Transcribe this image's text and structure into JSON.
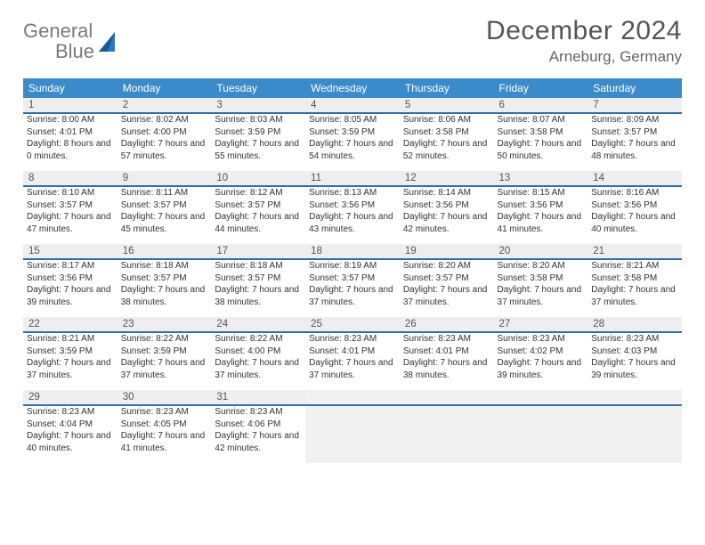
{
  "logo": {
    "text1": "General",
    "text2": "Blue"
  },
  "title": "December 2024",
  "location": "Arneburg, Germany",
  "dows": [
    "Sunday",
    "Monday",
    "Tuesday",
    "Wednesday",
    "Thursday",
    "Friday",
    "Saturday"
  ],
  "colors": {
    "header_bg": "#3b8bca",
    "row_rule": "#2f6fa8",
    "daynum_bg": "#eeeeee",
    "logo_gray": "#7a7a7a",
    "logo_blue": "#2f78c0"
  },
  "weeks": [
    [
      {
        "n": "1",
        "sr": "8:00 AM",
        "ss": "4:01 PM",
        "dh": "8",
        "dm": "0"
      },
      {
        "n": "2",
        "sr": "8:02 AM",
        "ss": "4:00 PM",
        "dh": "7",
        "dm": "57"
      },
      {
        "n": "3",
        "sr": "8:03 AM",
        "ss": "3:59 PM",
        "dh": "7",
        "dm": "55"
      },
      {
        "n": "4",
        "sr": "8:05 AM",
        "ss": "3:59 PM",
        "dh": "7",
        "dm": "54"
      },
      {
        "n": "5",
        "sr": "8:06 AM",
        "ss": "3:58 PM",
        "dh": "7",
        "dm": "52"
      },
      {
        "n": "6",
        "sr": "8:07 AM",
        "ss": "3:58 PM",
        "dh": "7",
        "dm": "50"
      },
      {
        "n": "7",
        "sr": "8:09 AM",
        "ss": "3:57 PM",
        "dh": "7",
        "dm": "48"
      }
    ],
    [
      {
        "n": "8",
        "sr": "8:10 AM",
        "ss": "3:57 PM",
        "dh": "7",
        "dm": "47"
      },
      {
        "n": "9",
        "sr": "8:11 AM",
        "ss": "3:57 PM",
        "dh": "7",
        "dm": "45"
      },
      {
        "n": "10",
        "sr": "8:12 AM",
        "ss": "3:57 PM",
        "dh": "7",
        "dm": "44"
      },
      {
        "n": "11",
        "sr": "8:13 AM",
        "ss": "3:56 PM",
        "dh": "7",
        "dm": "43"
      },
      {
        "n": "12",
        "sr": "8:14 AM",
        "ss": "3:56 PM",
        "dh": "7",
        "dm": "42"
      },
      {
        "n": "13",
        "sr": "8:15 AM",
        "ss": "3:56 PM",
        "dh": "7",
        "dm": "41"
      },
      {
        "n": "14",
        "sr": "8:16 AM",
        "ss": "3:56 PM",
        "dh": "7",
        "dm": "40"
      }
    ],
    [
      {
        "n": "15",
        "sr": "8:17 AM",
        "ss": "3:56 PM",
        "dh": "7",
        "dm": "39"
      },
      {
        "n": "16",
        "sr": "8:18 AM",
        "ss": "3:57 PM",
        "dh": "7",
        "dm": "38"
      },
      {
        "n": "17",
        "sr": "8:18 AM",
        "ss": "3:57 PM",
        "dh": "7",
        "dm": "38"
      },
      {
        "n": "18",
        "sr": "8:19 AM",
        "ss": "3:57 PM",
        "dh": "7",
        "dm": "37"
      },
      {
        "n": "19",
        "sr": "8:20 AM",
        "ss": "3:57 PM",
        "dh": "7",
        "dm": "37"
      },
      {
        "n": "20",
        "sr": "8:20 AM",
        "ss": "3:58 PM",
        "dh": "7",
        "dm": "37"
      },
      {
        "n": "21",
        "sr": "8:21 AM",
        "ss": "3:58 PM",
        "dh": "7",
        "dm": "37"
      }
    ],
    [
      {
        "n": "22",
        "sr": "8:21 AM",
        "ss": "3:59 PM",
        "dh": "7",
        "dm": "37"
      },
      {
        "n": "23",
        "sr": "8:22 AM",
        "ss": "3:59 PM",
        "dh": "7",
        "dm": "37"
      },
      {
        "n": "24",
        "sr": "8:22 AM",
        "ss": "4:00 PM",
        "dh": "7",
        "dm": "37"
      },
      {
        "n": "25",
        "sr": "8:23 AM",
        "ss": "4:01 PM",
        "dh": "7",
        "dm": "37"
      },
      {
        "n": "26",
        "sr": "8:23 AM",
        "ss": "4:01 PM",
        "dh": "7",
        "dm": "38"
      },
      {
        "n": "27",
        "sr": "8:23 AM",
        "ss": "4:02 PM",
        "dh": "7",
        "dm": "39"
      },
      {
        "n": "28",
        "sr": "8:23 AM",
        "ss": "4:03 PM",
        "dh": "7",
        "dm": "39"
      }
    ],
    [
      {
        "n": "29",
        "sr": "8:23 AM",
        "ss": "4:04 PM",
        "dh": "7",
        "dm": "40"
      },
      {
        "n": "30",
        "sr": "8:23 AM",
        "ss": "4:05 PM",
        "dh": "7",
        "dm": "41"
      },
      {
        "n": "31",
        "sr": "8:23 AM",
        "ss": "4:06 PM",
        "dh": "7",
        "dm": "42"
      },
      null,
      null,
      null,
      null
    ]
  ],
  "labels": {
    "sunrise": "Sunrise: ",
    "sunset": "Sunset: ",
    "daylight1": "Daylight: ",
    "daylight2": " hours and ",
    "daylight3": " minutes."
  }
}
